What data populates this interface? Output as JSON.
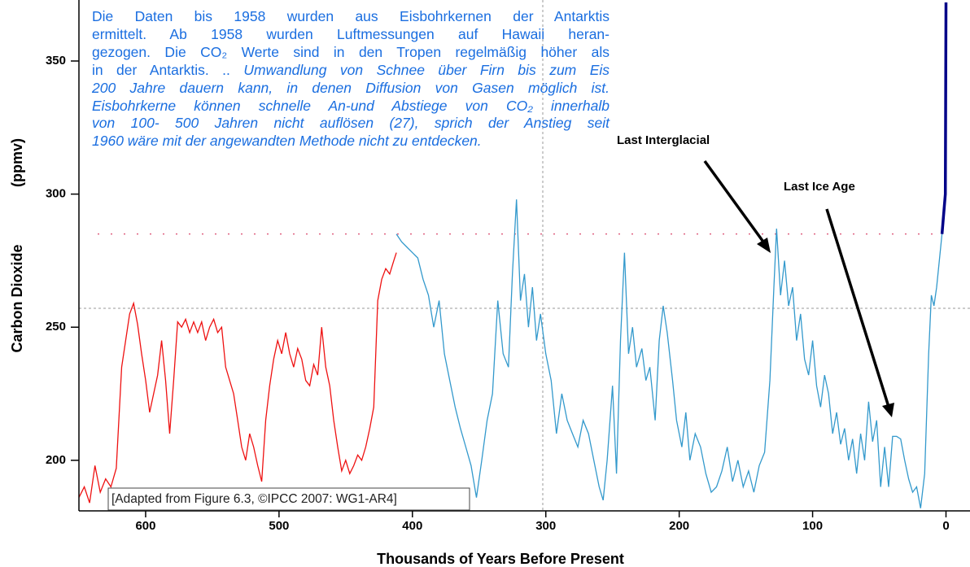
{
  "chart_data": {
    "type": "line",
    "xlabel": "Thousands of Years Before Present",
    "ylabel": "Carbon Dioxide",
    "ylabel_unit": "(ppmv)",
    "xlim": [
      650,
      -18
    ],
    "ylim": [
      181,
      372
    ],
    "xticks": [
      600,
      500,
      400,
      300,
      200,
      100,
      0
    ],
    "yticks": [
      200,
      250,
      300,
      350
    ],
    "reference_line": {
      "value": 285,
      "color": "#e06080"
    },
    "series": [
      {
        "color": "#ee1111",
        "x": [
          650,
          646,
          642,
          638,
          634,
          630,
          626,
          622,
          618,
          615,
          612,
          609,
          606,
          603,
          600,
          597,
          594,
          591,
          588,
          585,
          582,
          579,
          576,
          573,
          570,
          567,
          564,
          561,
          558,
          555,
          552,
          549,
          546,
          543,
          540,
          537,
          534,
          531,
          528,
          525,
          522,
          519,
          516,
          513,
          510,
          507,
          504,
          501,
          498,
          495,
          492,
          489,
          486,
          483,
          480,
          477,
          474,
          471,
          468,
          465,
          462,
          459,
          456,
          453,
          450,
          447,
          444,
          441,
          438,
          435,
          432,
          429,
          426,
          423,
          420,
          417,
          414,
          412
        ],
        "values": [
          186,
          190,
          184,
          198,
          188,
          193,
          190,
          197,
          235,
          245,
          255,
          259,
          251,
          240,
          230,
          218,
          225,
          232,
          245,
          230,
          210,
          230,
          252,
          250,
          253,
          248,
          252,
          248,
          252,
          245,
          250,
          253,
          248,
          250,
          235,
          230,
          225,
          215,
          205,
          200,
          210,
          205,
          198,
          192,
          215,
          228,
          238,
          245,
          240,
          248,
          240,
          235,
          242,
          238,
          230,
          228,
          236,
          232,
          250,
          235,
          228,
          215,
          205,
          196,
          200,
          195,
          198,
          202,
          200,
          205,
          212,
          220,
          260,
          268,
          272,
          270,
          275,
          278
        ]
      },
      {
        "color": "#3399cc",
        "x": [
          412,
          408,
          404,
          400,
          396,
          392,
          388,
          384,
          380,
          376,
          372,
          368,
          364,
          360,
          356,
          352,
          348,
          344,
          340,
          336,
          332,
          328,
          325,
          322,
          319,
          316,
          313,
          310,
          307,
          304,
          300,
          296,
          292,
          288,
          284,
          280,
          276,
          272,
          268,
          264,
          260,
          257,
          254,
          250,
          247,
          244,
          241,
          238,
          235,
          232,
          228,
          225,
          222,
          218,
          215,
          212,
          209,
          205,
          202,
          198,
          195,
          192,
          188,
          184,
          180,
          176,
          172,
          168,
          164,
          160,
          156,
          152,
          148,
          144,
          140,
          136,
          132,
          129,
          127,
          124,
          121,
          118,
          115,
          112,
          109,
          106,
          103,
          100,
          97,
          94,
          91,
          88,
          85,
          82,
          79,
          76,
          73,
          70,
          67,
          64,
          61,
          58,
          55,
          52,
          49,
          46,
          43,
          40,
          37,
          34,
          31,
          28,
          25,
          22,
          19,
          16,
          13,
          11,
          9,
          7,
          5,
          3
        ],
        "values": [
          285,
          282,
          280,
          278,
          276,
          268,
          262,
          250,
          260,
          240,
          230,
          220,
          212,
          205,
          198,
          186,
          200,
          215,
          225,
          260,
          240,
          235,
          270,
          298,
          260,
          270,
          250,
          265,
          245,
          255,
          240,
          230,
          210,
          225,
          215,
          210,
          205,
          215,
          210,
          200,
          190,
          185,
          200,
          228,
          195,
          245,
          278,
          240,
          250,
          235,
          242,
          230,
          235,
          215,
          245,
          258,
          248,
          230,
          215,
          205,
          218,
          200,
          210,
          205,
          195,
          188,
          190,
          196,
          205,
          192,
          200,
          190,
          196,
          188,
          198,
          203,
          230,
          265,
          287,
          262,
          275,
          258,
          265,
          245,
          255,
          238,
          232,
          245,
          228,
          220,
          232,
          225,
          210,
          218,
          206,
          212,
          200,
          208,
          195,
          210,
          200,
          222,
          207,
          215,
          190,
          205,
          190,
          209,
          209,
          208,
          200,
          193,
          188,
          190,
          182,
          195,
          240,
          262,
          258,
          265,
          275,
          285
        ]
      },
      {
        "color": "#000088",
        "x": [
          3,
          0.5,
          0
        ],
        "values": [
          285,
          300,
          372
        ]
      }
    ],
    "annotations": [
      {
        "text": "Last Interglacial"
      },
      {
        "text": "Last Ice Age"
      }
    ],
    "source": "[Adapted from Figure 6.3, ©IPCC 2007: WG1-AR4]",
    "annotation_lines": [
      [
        {
          "text": "Die Daten bis 1958 wurden aus Eisbohrkernen der Antarktis",
          "style": "normal"
        }
      ],
      [
        {
          "text": "ermittelt. Ab 1958 wurden Luftmessungen auf Hawaii heran-",
          "style": "normal"
        }
      ],
      [
        {
          "text": "gezogen. Die CO₂ Werte sind in den Tropen regelmäßig höher als",
          "style": "normal"
        }
      ],
      [
        {
          "text": "in der Antarktis. .. ",
          "style": "normal"
        },
        {
          "text": "Umwandlung von Schnee über Firn bis zum Eis",
          "style": "italic"
        }
      ],
      [
        {
          "text": "200 Jahre dauern kann, in denen Diffusion von Gasen möglich ist.",
          "style": "italic"
        }
      ],
      [
        {
          "text": "Eisbohrkerne können schnelle An-und Abstiege von CO₂ innerhalb",
          "style": "italic"
        }
      ],
      [
        {
          "text": "von 100- 500 Jahren nicht auflösen (27), sprich der Anstieg seit",
          "style": "italic"
        }
      ],
      [
        {
          "text": "1960 wäre mit der angewandten Methode nicht zu entdecken.",
          "style": "italic"
        }
      ]
    ]
  }
}
